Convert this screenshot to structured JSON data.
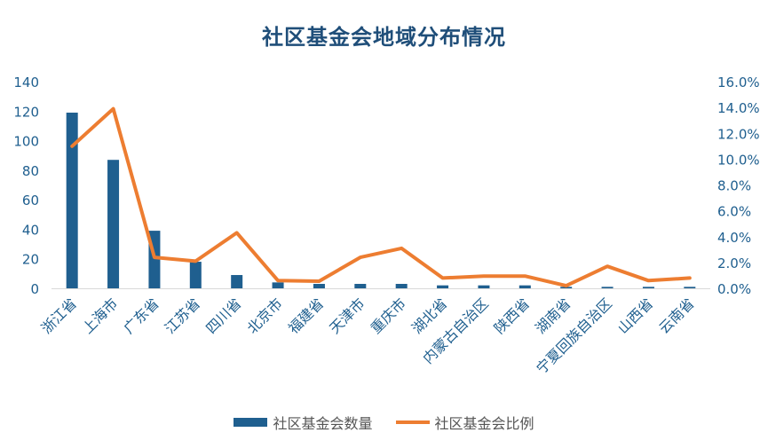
{
  "chart_data": {
    "type": "bar",
    "title": "社区基金会地域分布情况",
    "categories": [
      "浙江省",
      "上海市",
      "广东省",
      "江苏省",
      "四川省",
      "北京市",
      "福建省",
      "天津市",
      "重庆市",
      "湖北省",
      "内蒙古自治区",
      "陕西省",
      "湖南省",
      "宁夏回族自治区",
      "山西省",
      "云南省"
    ],
    "series": [
      {
        "name": "社区基金会数量",
        "type": "bar",
        "axis": "left",
        "values": [
          119,
          87,
          39,
          18,
          9,
          4,
          3,
          3,
          3,
          2,
          2,
          2,
          1,
          1,
          1,
          1
        ]
      },
      {
        "name": "社区基金会比例",
        "type": "line",
        "axis": "right",
        "values": [
          11.0,
          13.9,
          2.4,
          2.1,
          4.3,
          0.6,
          0.55,
          2.4,
          3.1,
          0.8,
          0.95,
          0.95,
          0.2,
          1.7,
          0.6,
          0.8
        ]
      }
    ],
    "y_left": {
      "min": 0,
      "max": 140,
      "ticks": [
        "0",
        "20",
        "40",
        "60",
        "80",
        "100",
        "120",
        "140"
      ]
    },
    "y_right": {
      "min": 0,
      "max": 16,
      "ticks": [
        "0.0%",
        "2.0%",
        "4.0%",
        "6.0%",
        "8.0%",
        "10.0%",
        "12.0%",
        "14.0%",
        "16.0%"
      ]
    },
    "grid": false,
    "legend": "bottom",
    "colors": {
      "bar": "#1f5f8f",
      "line": "#ed7d31",
      "title": "#1f4e79",
      "axis": "#1f5f8f"
    }
  },
  "legend": {
    "bar_label": "社区基金会数量",
    "line_label": "社区基金会比例"
  }
}
